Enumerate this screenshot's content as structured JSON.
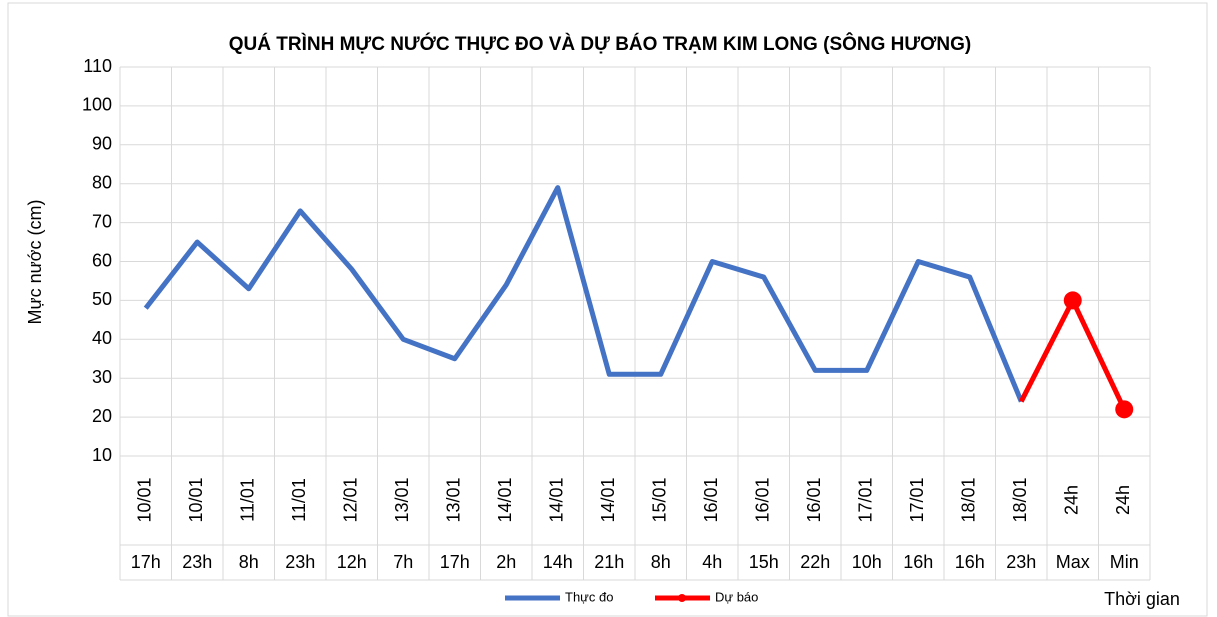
{
  "chart_data": {
    "type": "line",
    "title": "QUÁ TRÌNH MỰC NƯỚC THỰC ĐO VÀ DỰ BÁO TRẠM KIM LONG (SÔNG HƯƠNG)",
    "ylabel": "Mực nước (cm)",
    "xlabel": "Thời gian",
    "categories": [
      "10/01",
      "10/01",
      "11/01",
      "11/01",
      "12/01",
      "13/01",
      "13/01",
      "14/01",
      "14/01",
      "14/01",
      "15/01",
      "16/01",
      "16/01",
      "16/01",
      "17/01",
      "17/01",
      "18/01",
      "18/01",
      "24h",
      "24h"
    ],
    "time_labels": [
      "17h",
      "23h",
      "8h",
      "23h",
      "12h",
      "7h",
      "17h",
      "2h",
      "14h",
      "21h",
      "8h",
      "4h",
      "15h",
      "22h",
      "10h",
      "16h",
      "16h",
      "23h",
      "Max",
      "Min"
    ],
    "series": [
      {
        "name": "Thực đo",
        "color": "#4472c4",
        "marker": false,
        "values": [
          48,
          65,
          53,
          73,
          58,
          40,
          35,
          54,
          79,
          31,
          31,
          60,
          56,
          32,
          32,
          60,
          56,
          24,
          null,
          null
        ]
      },
      {
        "name": "Dự báo",
        "color": "#ff0000",
        "marker": true,
        "values": [
          null,
          null,
          null,
          null,
          null,
          null,
          null,
          null,
          null,
          null,
          null,
          null,
          null,
          null,
          null,
          null,
          null,
          24,
          50,
          22
        ]
      }
    ],
    "ylim": [
      10,
      110
    ],
    "yticks": [
      10,
      20,
      30,
      40,
      50,
      60,
      70,
      80,
      90,
      100,
      110
    ],
    "grid": true,
    "legend": "bottom"
  }
}
